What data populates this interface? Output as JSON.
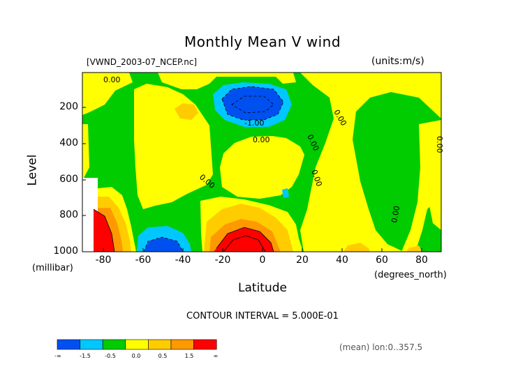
{
  "chart_data": {
    "type": "heatmap",
    "title": "Monthly Mean V wind",
    "file_label": "[VWND_2003-07_NCEP.nc]",
    "units_label": "(units:m/s)",
    "ylabel": "Level",
    "y_unit": "(millibar)",
    "xlabel": "Latitude",
    "x_unit": "(degrees_north)",
    "x_ticks": [
      "-80",
      "-60",
      "-40",
      "-20",
      "0",
      "20",
      "40",
      "60",
      "80"
    ],
    "y_ticks": [
      "200",
      "400",
      "600",
      "800",
      "1000"
    ],
    "xlim": [
      -90,
      90
    ],
    "ylim": [
      1000,
      10
    ],
    "contour_interval_text": "CONTOUR INTERVAL = 5.000E-01",
    "contour_labels": [
      "0.00",
      "-1.00"
    ],
    "footer": "(mean) lon:0..357.5",
    "colorbar": {
      "tick_labels": [
        "-∞",
        "-1.5",
        "-0.5",
        "0.0",
        "0.5",
        "1.5",
        "∞"
      ],
      "colors": [
        "#0050f0",
        "#00c8ff",
        "#00cc00",
        "#ffff00",
        "#ffcc00",
        "#ff9900",
        "#ff0000"
      ]
    }
  }
}
